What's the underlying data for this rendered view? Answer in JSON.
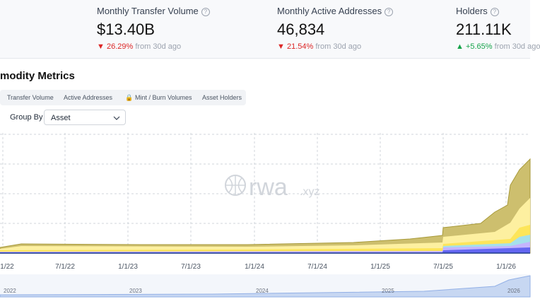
{
  "metrics": [
    {
      "label": "Monthly Transfer Volume",
      "value": "$13.40B",
      "change": "26.29%",
      "direction": "down",
      "note": "from 30d ago"
    },
    {
      "label": "Monthly Active Addresses",
      "value": "46,834",
      "change": "21.54%",
      "direction": "down",
      "note": "from 30d ago"
    },
    {
      "label": "Holders",
      "value": "211.11K",
      "change": "+5.65%",
      "direction": "up",
      "note": "from 30d ago"
    }
  ],
  "section": {
    "title": "modity Metrics",
    "tabs": [
      "Transfer Volume",
      "Active Addresses",
      "Mint / Burn Volumes",
      "Asset Holders"
    ],
    "group_by": {
      "label": "Group By",
      "selected": "Asset"
    }
  },
  "chart": {
    "watermark": "rwa",
    "watermark_suffix": ".xyz",
    "x_labels": [
      "1/22",
      "7/1/22",
      "1/1/23",
      "7/1/23",
      "1/1/24",
      "7/1/24",
      "1/1/25",
      "7/1/25",
      "1/1/26"
    ],
    "navigator_labels": [
      "2022",
      "2023",
      "2024",
      "2025",
      "2026"
    ]
  }
}
